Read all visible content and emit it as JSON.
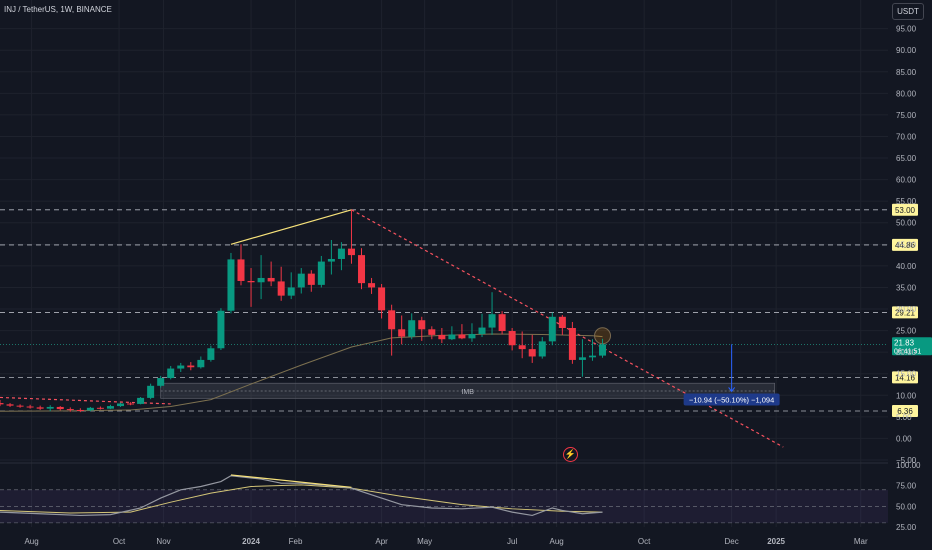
{
  "header": {
    "symbol": "INJ / TetherUS, 1W, BINANCE",
    "currency": "USDT"
  },
  "colors": {
    "background": "#131722",
    "up": "#089981",
    "down": "#f23645",
    "grid": "#1e222d",
    "ma": "#7d7150",
    "trendline": "#f7e27a",
    "downtrend": "#f7525f",
    "rsi": "#9598a1"
  },
  "chart_data": [
    {
      "type": "candlestick",
      "title": "INJ / TetherUS, 1W, BINANCE",
      "y_ticks": [
        "95.00",
        "90.00",
        "85.00",
        "80.00",
        "75.00",
        "70.00",
        "65.00",
        "60.00",
        "55.00",
        "50.00",
        "45.00",
        "40.00",
        "35.00",
        "30.00",
        "25.00",
        "20.00",
        "15.00",
        "10.00",
        "5.00",
        "0.00",
        "−5.00"
      ],
      "ylim": [
        -5,
        97
      ],
      "x_ticks": [
        "Aug",
        "Oct",
        "Nov",
        "2024",
        "Feb",
        "Apr",
        "May",
        "Jul",
        "Aug",
        "Oct",
        "Dec",
        "2025",
        "Mar"
      ],
      "x_tick_values": [
        "2023-08-01",
        "2023-10-01",
        "2023-11-01",
        "2024-01-01",
        "2024-02-01",
        "2024-04-01",
        "2024-05-01",
        "2024-07-01",
        "2024-08-01",
        "2024-10-01",
        "2024-12-01",
        "2025-01-01",
        "2025-03-01"
      ],
      "date_range": [
        "2023-07-10",
        "2025-03-20"
      ],
      "candles": [
        {
          "date": "2023-07-10",
          "open": 8.2,
          "high": 8.9,
          "low": 7.5,
          "close": 7.9
        },
        {
          "date": "2023-07-17",
          "open": 7.9,
          "high": 8.2,
          "low": 7.3,
          "close": 7.6
        },
        {
          "date": "2023-07-24",
          "open": 7.6,
          "high": 7.9,
          "low": 7.1,
          "close": 7.4
        },
        {
          "date": "2023-07-31",
          "open": 7.4,
          "high": 7.8,
          "low": 6.9,
          "close": 7.2
        },
        {
          "date": "2023-08-07",
          "open": 7.2,
          "high": 7.6,
          "low": 6.6,
          "close": 6.9
        },
        {
          "date": "2023-08-14",
          "open": 6.9,
          "high": 7.7,
          "low": 6.3,
          "close": 7.3
        },
        {
          "date": "2023-08-21",
          "open": 7.3,
          "high": 7.5,
          "low": 6.5,
          "close": 6.8
        },
        {
          "date": "2023-08-28",
          "open": 6.8,
          "high": 7.2,
          "low": 6.2,
          "close": 6.6
        },
        {
          "date": "2023-09-04",
          "open": 6.6,
          "high": 7.0,
          "low": 6.1,
          "close": 6.5
        },
        {
          "date": "2023-09-11",
          "open": 6.5,
          "high": 7.3,
          "low": 6.3,
          "close": 7.1
        },
        {
          "date": "2023-09-18",
          "open": 7.1,
          "high": 7.4,
          "low": 6.7,
          "close": 6.9
        },
        {
          "date": "2023-09-25",
          "open": 6.9,
          "high": 7.8,
          "low": 6.8,
          "close": 7.5
        },
        {
          "date": "2023-10-02",
          "open": 7.5,
          "high": 8.3,
          "low": 7.3,
          "close": 8.1
        },
        {
          "date": "2023-10-09",
          "open": 8.1,
          "high": 8.4,
          "low": 7.7,
          "close": 8.0
        },
        {
          "date": "2023-10-16",
          "open": 8.0,
          "high": 9.6,
          "low": 7.9,
          "close": 9.4
        },
        {
          "date": "2023-10-23",
          "open": 9.4,
          "high": 12.7,
          "low": 9.1,
          "close": 12.2
        },
        {
          "date": "2023-10-30",
          "open": 12.2,
          "high": 14.5,
          "low": 11.8,
          "close": 14.0
        },
        {
          "date": "2023-11-06",
          "open": 14.0,
          "high": 16.8,
          "low": 13.7,
          "close": 16.2
        },
        {
          "date": "2023-11-13",
          "open": 16.2,
          "high": 17.5,
          "low": 15.4,
          "close": 16.9
        },
        {
          "date": "2023-11-20",
          "open": 16.9,
          "high": 17.7,
          "low": 15.8,
          "close": 16.5
        },
        {
          "date": "2023-11-27",
          "open": 16.5,
          "high": 19.0,
          "low": 16.2,
          "close": 18.2
        },
        {
          "date": "2023-12-04",
          "open": 18.2,
          "high": 21.5,
          "low": 17.8,
          "close": 20.9
        },
        {
          "date": "2023-12-11",
          "open": 20.9,
          "high": 30.2,
          "low": 20.5,
          "close": 29.6
        },
        {
          "date": "2023-12-18",
          "open": 29.6,
          "high": 43.0,
          "low": 29.0,
          "close": 41.5
        },
        {
          "date": "2023-12-25",
          "open": 41.5,
          "high": 45.0,
          "low": 35.5,
          "close": 36.5
        },
        {
          "date": "2024-01-01",
          "open": 36.5,
          "high": 39.5,
          "low": 30.5,
          "close": 36.2
        },
        {
          "date": "2024-01-08",
          "open": 36.2,
          "high": 42.5,
          "low": 32.3,
          "close": 37.2
        },
        {
          "date": "2024-01-15",
          "open": 37.2,
          "high": 41.0,
          "low": 35.3,
          "close": 36.4
        },
        {
          "date": "2024-01-22",
          "open": 36.4,
          "high": 39.8,
          "low": 31.9,
          "close": 33.1
        },
        {
          "date": "2024-01-29",
          "open": 33.1,
          "high": 38.5,
          "low": 32.3,
          "close": 35.0
        },
        {
          "date": "2024-02-05",
          "open": 35.0,
          "high": 39.5,
          "low": 33.6,
          "close": 38.2
        },
        {
          "date": "2024-02-12",
          "open": 38.2,
          "high": 39.0,
          "low": 34.0,
          "close": 35.6
        },
        {
          "date": "2024-02-19",
          "open": 35.6,
          "high": 42.3,
          "low": 35.0,
          "close": 41.0
        },
        {
          "date": "2024-02-26",
          "open": 41.0,
          "high": 46.0,
          "low": 38.0,
          "close": 41.6
        },
        {
          "date": "2024-03-04",
          "open": 41.6,
          "high": 45.5,
          "low": 39.0,
          "close": 44.0
        },
        {
          "date": "2024-03-11",
          "open": 44.0,
          "high": 53.0,
          "low": 40.5,
          "close": 42.5
        },
        {
          "date": "2024-03-18",
          "open": 42.5,
          "high": 44.1,
          "low": 34.6,
          "close": 36.0
        },
        {
          "date": "2024-03-25",
          "open": 36.0,
          "high": 37.2,
          "low": 33.5,
          "close": 35.0
        },
        {
          "date": "2024-04-01",
          "open": 35.0,
          "high": 35.8,
          "low": 27.8,
          "close": 29.7
        },
        {
          "date": "2024-04-08",
          "open": 29.7,
          "high": 31.0,
          "low": 19.2,
          "close": 25.3
        },
        {
          "date": "2024-04-15",
          "open": 25.3,
          "high": 28.5,
          "low": 21.8,
          "close": 23.6
        },
        {
          "date": "2024-04-22",
          "open": 23.6,
          "high": 29.0,
          "low": 23.0,
          "close": 27.4
        },
        {
          "date": "2024-04-29",
          "open": 27.4,
          "high": 28.2,
          "low": 22.6,
          "close": 25.3
        },
        {
          "date": "2024-05-06",
          "open": 25.3,
          "high": 26.0,
          "low": 23.0,
          "close": 24.0
        },
        {
          "date": "2024-05-13",
          "open": 24.0,
          "high": 25.6,
          "low": 22.1,
          "close": 23.0
        },
        {
          "date": "2024-05-20",
          "open": 23.0,
          "high": 26.0,
          "low": 22.8,
          "close": 24.1
        },
        {
          "date": "2024-05-27",
          "open": 24.1,
          "high": 26.5,
          "low": 23.0,
          "close": 23.2
        },
        {
          "date": "2024-06-03",
          "open": 23.2,
          "high": 26.7,
          "low": 22.4,
          "close": 24.2
        },
        {
          "date": "2024-06-10",
          "open": 24.2,
          "high": 28.9,
          "low": 23.5,
          "close": 25.7
        },
        {
          "date": "2024-06-17",
          "open": 25.7,
          "high": 33.9,
          "low": 24.0,
          "close": 28.8
        },
        {
          "date": "2024-06-24",
          "open": 28.8,
          "high": 29.5,
          "low": 24.1,
          "close": 24.9
        },
        {
          "date": "2024-07-01",
          "open": 24.9,
          "high": 25.6,
          "low": 20.4,
          "close": 21.6
        },
        {
          "date": "2024-07-08",
          "open": 21.6,
          "high": 24.8,
          "low": 18.6,
          "close": 20.7
        },
        {
          "date": "2024-07-15",
          "open": 20.7,
          "high": 24.0,
          "low": 17.5,
          "close": 19.0
        },
        {
          "date": "2024-07-22",
          "open": 19.0,
          "high": 23.5,
          "low": 18.5,
          "close": 22.5
        },
        {
          "date": "2024-07-29",
          "open": 22.5,
          "high": 29.2,
          "low": 21.6,
          "close": 28.2
        },
        {
          "date": "2024-08-05",
          "open": 28.2,
          "high": 28.6,
          "low": 24.0,
          "close": 25.6
        },
        {
          "date": "2024-08-12",
          "open": 25.6,
          "high": 27.0,
          "low": 17.3,
          "close": 18.2
        },
        {
          "date": "2024-08-19",
          "open": 18.2,
          "high": 23.0,
          "low": 14.3,
          "close": 18.8
        },
        {
          "date": "2024-08-26",
          "open": 18.8,
          "high": 23.0,
          "low": 18.0,
          "close": 19.2
        },
        {
          "date": "2024-09-02",
          "open": 19.2,
          "high": 23.1,
          "low": 18.7,
          "close": 21.8
        }
      ],
      "ma": [
        {
          "date": "2023-07-10",
          "value": 6.3
        },
        {
          "date": "2023-08-28",
          "value": 6.4
        },
        {
          "date": "2023-10-09",
          "value": 6.6
        },
        {
          "date": "2023-11-06",
          "value": 7.4
        },
        {
          "date": "2023-12-04",
          "value": 9.0
        },
        {
          "date": "2024-01-01",
          "value": 12.6
        },
        {
          "date": "2024-02-05",
          "value": 17.0
        },
        {
          "date": "2024-03-11",
          "value": 21.2
        },
        {
          "date": "2024-04-08",
          "value": 23.3
        },
        {
          "date": "2024-05-13",
          "value": 23.9
        },
        {
          "date": "2024-06-17",
          "value": 24.2
        },
        {
          "date": "2024-07-22",
          "value": 24.1
        },
        {
          "date": "2024-08-26",
          "value": 23.8
        },
        {
          "date": "2024-09-02",
          "value": 23.6
        }
      ],
      "price_levels": [
        {
          "value": 53.0,
          "label": "53.00"
        },
        {
          "value": 44.86,
          "label": "44.86"
        },
        {
          "value": 29.21,
          "label": "29.21"
        },
        {
          "value": 14.16,
          "label": "14.16"
        },
        {
          "value": 6.36,
          "label": "6.36"
        }
      ],
      "last_price": {
        "value": 21.83,
        "label": "21.83",
        "countdown": "06:41:51"
      },
      "imb_zone": {
        "label": "IMB",
        "start": "2023-10-30",
        "end": "2024-12-31",
        "top": 12.8,
        "bottom": 9.3,
        "mid": 11.0
      },
      "trendline": [
        {
          "date": "2023-12-18",
          "value": 45.0
        },
        {
          "date": "2024-03-11",
          "value": 53.0
        }
      ],
      "downtrend": [
        {
          "date": "2024-03-11",
          "value": 53.0
        },
        {
          "date": "2025-01-06",
          "value": -2.0
        }
      ],
      "old_trend": [
        {
          "date": "2023-07-10",
          "value": 9.5
        },
        {
          "date": "2023-11-06",
          "value": 8.0
        }
      ],
      "marker_circle": {
        "date": "2024-09-02",
        "value": 23.8
      },
      "measure": {
        "label": "−10.94 (−50.10%) −1,094",
        "date": "2024-12-01",
        "from": 21.83,
        "to": 10.89
      }
    },
    {
      "type": "line",
      "ylim": [
        25,
        100
      ],
      "y_ticks": [
        "100.00",
        "75.00",
        "50.00",
        "25.00"
      ],
      "levels": [
        70,
        50,
        30
      ],
      "series": [
        {
          "values": [
            {
              "date": "2023-07-10",
              "value": 43
            },
            {
              "date": "2023-08-07",
              "value": 41
            },
            {
              "date": "2023-09-04",
              "value": 39
            },
            {
              "date": "2023-09-25",
              "value": 40
            },
            {
              "date": "2023-10-16",
              "value": 48
            },
            {
              "date": "2023-10-30",
              "value": 60
            },
            {
              "date": "2023-11-13",
              "value": 70
            },
            {
              "date": "2023-11-27",
              "value": 74
            },
            {
              "date": "2023-12-11",
              "value": 80
            },
            {
              "date": "2023-12-18",
              "value": 87
            },
            {
              "date": "2024-01-08",
              "value": 83
            },
            {
              "date": "2024-01-22",
              "value": 78
            },
            {
              "date": "2024-02-05",
              "value": 78
            },
            {
              "date": "2024-02-19",
              "value": 76
            },
            {
              "date": "2024-03-11",
              "value": 72
            },
            {
              "date": "2024-03-25",
              "value": 64
            },
            {
              "date": "2024-04-15",
              "value": 52
            },
            {
              "date": "2024-05-06",
              "value": 48
            },
            {
              "date": "2024-05-27",
              "value": 47
            },
            {
              "date": "2024-06-17",
              "value": 49
            },
            {
              "date": "2024-07-01",
              "value": 43
            },
            {
              "date": "2024-07-15",
              "value": 39
            },
            {
              "date": "2024-07-29",
              "value": 48
            },
            {
              "date": "2024-08-05",
              "value": 45
            },
            {
              "date": "2024-08-19",
              "value": 41
            },
            {
              "date": "2024-09-02",
              "value": 43
            }
          ]
        },
        {
          "values": [
            {
              "date": "2023-07-10",
              "value": 45
            },
            {
              "date": "2023-08-28",
              "value": 42
            },
            {
              "date": "2023-10-09",
              "value": 43
            },
            {
              "date": "2023-11-06",
              "value": 55
            },
            {
              "date": "2023-12-04",
              "value": 66
            },
            {
              "date": "2024-01-01",
              "value": 74
            },
            {
              "date": "2024-02-05",
              "value": 76
            },
            {
              "date": "2024-03-11",
              "value": 72
            },
            {
              "date": "2024-04-15",
              "value": 62
            },
            {
              "date": "2024-05-27",
              "value": 52
            },
            {
              "date": "2024-07-01",
              "value": 47
            },
            {
              "date": "2024-08-05",
              "value": 44
            },
            {
              "date": "2024-09-02",
              "value": 43
            }
          ]
        }
      ],
      "trendline": [
        {
          "date": "2023-12-18",
          "value": 88
        },
        {
          "date": "2024-03-11",
          "value": 73
        }
      ]
    }
  ]
}
